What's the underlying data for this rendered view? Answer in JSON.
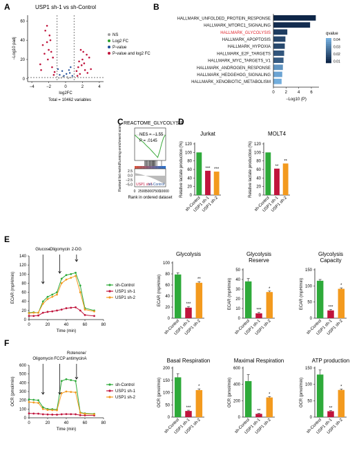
{
  "letters": {
    "A": "A",
    "B": "B",
    "C": "C",
    "D": "D",
    "E": "E",
    "F": "F"
  },
  "colors": {
    "control": "#2eaa3a",
    "sh1": "#c0143c",
    "sh2": "#f39a1e",
    "volcano_ns": "#9e9e9e",
    "volcano_log2fc": "#2ca02c",
    "volcano_p": "#1f4e9a",
    "volcano_both": "#c0143c",
    "enrich_line": "#3bab3b",
    "bar_axis": "#222222",
    "glycolysis_highlight": "#e0242a"
  },
  "chart_data": [
    {
      "id": "A",
      "type": "scatter",
      "title": "USP1 sh-1 vs sh-Control",
      "xlabel": "log2FC",
      "ylabel": "−Log10 padj",
      "xticks": [
        "−4",
        "−2",
        "0",
        "2",
        "4"
      ],
      "yticks": [
        "0",
        "20",
        "40",
        "60"
      ],
      "xlim": [
        -4.5,
        4.5
      ],
      "ylim": [
        -3,
        66
      ],
      "cutoffs": {
        "x": [
          -1,
          1
        ],
        "y": 1.3
      },
      "legend": [
        "NS",
        "Log2 FC",
        "P-value",
        "P-value and log2 FC"
      ],
      "caption": "Total = 10462 variables",
      "points_up": [
        [
          1.3,
          8
        ],
        [
          1.5,
          12
        ],
        [
          1.7,
          5
        ],
        [
          2,
          20
        ],
        [
          2.2,
          16
        ],
        [
          2.5,
          25
        ],
        [
          1.8,
          30
        ],
        [
          2.1,
          28
        ],
        [
          3,
          10
        ],
        [
          2.6,
          6
        ],
        [
          1.4,
          3
        ],
        [
          1.6,
          18
        ],
        [
          2.3,
          9
        ],
        [
          1.9,
          14
        ],
        [
          2.8,
          22
        ]
      ],
      "points_down": [
        [
          -1.3,
          7
        ],
        [
          -1.6,
          12
        ],
        [
          -2,
          30
        ],
        [
          -2.2,
          55
        ],
        [
          -1.8,
          40
        ],
        [
          -2.5,
          26
        ],
        [
          -3,
          15
        ],
        [
          -2.1,
          20
        ],
        [
          -1.4,
          4
        ],
        [
          -2.7,
          35
        ],
        [
          -1.9,
          45
        ],
        [
          -2.4,
          50
        ],
        [
          -1.5,
          22
        ],
        [
          -2.9,
          9
        ],
        [
          -2.2,
          38
        ],
        [
          -1.7,
          28
        ]
      ],
      "points_ns": [
        [
          -0.5,
          1
        ],
        [
          0.3,
          0.5
        ],
        [
          0.6,
          1.2
        ],
        [
          -0.8,
          0.9
        ],
        [
          0.2,
          1.8
        ],
        [
          -0.3,
          2.2
        ]
      ],
      "points_p": [
        [
          -0.7,
          4
        ],
        [
          0.5,
          6
        ],
        [
          -0.4,
          8
        ],
        [
          0.8,
          3
        ],
        [
          0.1,
          5
        ],
        [
          -0.9,
          10
        ],
        [
          0.6,
          12
        ],
        [
          -0.2,
          3
        ],
        [
          0.4,
          9
        ]
      ]
    },
    {
      "id": "B",
      "type": "bar",
      "categories": [
        "HALLMARK_UNFOLDED_PROTEIN_RESPONSE",
        "HALLMARK_MTORC1_SIGNALING",
        "HALLMARK_GLYCOLYSIS",
        "HALLMARK_APOPTOSIS",
        "HALLMARK_HYPOXIA",
        "HALLMARK_E2F_TARGETS",
        "HALLMARK_MYC_TARGETS_V1",
        "HALLMARK_ANDROGEN_RESPONSE",
        "HALLMARK_HEDGEHOG_SIGNALING",
        "HALLMARK_XENOBIOTIC_METABOLISM"
      ],
      "values": [
        6.7,
        5.8,
        2.2,
        1.9,
        1.8,
        1.7,
        1.6,
        1.5,
        1.4,
        1.3
      ],
      "qvalues": [
        0.005,
        0.007,
        0.012,
        0.015,
        0.016,
        0.02,
        0.022,
        0.04,
        0.045,
        0.048
      ],
      "xlabel": "−Log10 (P)",
      "xticks": [
        "0",
        "2",
        "4",
        "6"
      ],
      "xlim": [
        0,
        7.2
      ],
      "legend_title": "qvalue",
      "legend_ticks": [
        "0.04",
        "0.03",
        "0.02",
        "0.01"
      ]
    },
    {
      "id": "C",
      "type": "line",
      "title": "REACTOME_GLYCOLYSIS",
      "nes": "NES = −1.55",
      "pval": "P = .0145",
      "ylabel_top": "Running enrichment score",
      "ylabel_bottom": "Ranked list metric",
      "xlabel": "Rank in ordered dataset",
      "xticks": [
        "0",
        "2500",
        "5000",
        "7500",
        "10000"
      ],
      "bottom_yticks": [
        "2.5",
        "0.0",
        "−2.5",
        "−5.0"
      ],
      "group_left": "USP1 sh-1",
      "group_right": "sh-Control",
      "es": [
        [
          0,
          0
        ],
        [
          1000,
          -0.05
        ],
        [
          2000,
          -0.1
        ],
        [
          3000,
          -0.14
        ],
        [
          4000,
          -0.2
        ],
        [
          5000,
          -0.25
        ],
        [
          6000,
          -0.31
        ],
        [
          7000,
          -0.37
        ],
        [
          7800,
          -0.42
        ],
        [
          8500,
          -0.3
        ],
        [
          9200,
          -0.15
        ],
        [
          9800,
          -0.05
        ],
        [
          10400,
          0
        ]
      ],
      "hits": [
        3400,
        3700,
        3900,
        4100,
        4400,
        4600,
        4900,
        5100,
        5300,
        5500,
        5700,
        5900,
        6100,
        6300,
        6500,
        6700,
        6900,
        7200,
        7500,
        9100
      ]
    },
    {
      "id": "D1",
      "type": "bar",
      "title": "Jurkat",
      "ylabel": "Relative lactate production (%)",
      "categories": [
        "sh-Control",
        "USP1 sh-1",
        "USP1 sh-2"
      ],
      "values": [
        100,
        57,
        55
      ],
      "ylim": [
        0,
        120
      ],
      "yticks": [
        "0",
        "20",
        "40",
        "60",
        "80",
        "100",
        "120"
      ],
      "sig": [
        "",
        "***",
        "***"
      ]
    },
    {
      "id": "D2",
      "type": "bar",
      "title": "MOLT4",
      "ylabel": "Relative lactate production (%)",
      "categories": [
        "sh-Control",
        "USP1 sh-1",
        "USP1 sh-2"
      ],
      "values": [
        100,
        62,
        74
      ],
      "ylim": [
        0,
        120
      ],
      "yticks": [
        "0",
        "20",
        "40",
        "60",
        "80",
        "100",
        "120"
      ],
      "sig": [
        "",
        "**",
        "**"
      ]
    },
    {
      "id": "E",
      "type": "line",
      "ylabel": "ECAR (mpH/min)",
      "xlabel": "Time (min)",
      "xticks": [
        "0",
        "20",
        "40",
        "60",
        "80"
      ],
      "yticks": [
        "0",
        "20",
        "40",
        "60",
        "80",
        "100",
        "120",
        "140"
      ],
      "xlim": [
        0,
        80
      ],
      "ylim": [
        0,
        140
      ],
      "injections": [
        "Glucose",
        "Oligomycin",
        "2-DG"
      ],
      "x": [
        0,
        5,
        10,
        15,
        20,
        25,
        30,
        35,
        40,
        45,
        50,
        55,
        60,
        70
      ],
      "series": [
        {
          "name": "sh-Control",
          "values": [
            15,
            16,
            15,
            40,
            50,
            55,
            60,
            90,
            98,
            100,
            103,
            75,
            25,
            20
          ]
        },
        {
          "name": "USP1 sh-1",
          "values": [
            8,
            8,
            9,
            15,
            17,
            18,
            20,
            22,
            25,
            26,
            27,
            20,
            10,
            8
          ]
        },
        {
          "name": "USP1 sh-2",
          "values": [
            14,
            15,
            15,
            35,
            45,
            50,
            55,
            80,
            88,
            92,
            96,
            60,
            22,
            18
          ]
        }
      ]
    },
    {
      "id": "E1",
      "type": "bar",
      "title": "Glycolysis",
      "ylabel": "ECAR (mpH/min)",
      "categories": [
        "sh-Control",
        "USP1 sh-1",
        "USP1 sh-2"
      ],
      "values": [
        79,
        19,
        64
      ],
      "errors": [
        3,
        2,
        2
      ],
      "ylim": [
        0,
        100
      ],
      "yticks": [
        "0",
        "20",
        "40",
        "60",
        "80",
        "100"
      ],
      "sig": [
        "",
        "***",
        "**"
      ]
    },
    {
      "id": "E2",
      "type": "bar",
      "title": "Glycolysis Reserve",
      "ylabel": "ECAR (mpH/min)",
      "categories": [
        "sh-Control",
        "USP1 sh-1",
        "USP1 sh-2"
      ],
      "values": [
        38,
        5,
        27
      ],
      "errors": [
        3,
        1,
        1
      ],
      "ylim": [
        0,
        50
      ],
      "yticks": [
        "0",
        "10",
        "20",
        "30",
        "40",
        "50"
      ],
      "sig": [
        "",
        "***",
        "*"
      ]
    },
    {
      "id": "E3",
      "type": "bar",
      "title": "Glycolysis Capacity",
      "ylabel": "ECAR (mpH/min)",
      "categories": [
        "sh-Control",
        "USP1 sh-1",
        "USP1 sh-2"
      ],
      "values": [
        116,
        24,
        91
      ],
      "errors": [
        4,
        3,
        3
      ],
      "ylim": [
        0,
        150
      ],
      "yticks": [
        "0",
        "50",
        "100",
        "150"
      ],
      "sig": [
        "",
        "***",
        "*"
      ]
    },
    {
      "id": "F",
      "type": "line",
      "ylabel": "OCR (pmol/min)",
      "xlabel": "Time (min)",
      "xticks": [
        "0",
        "20",
        "40",
        "60",
        "80"
      ],
      "yticks": [
        "0",
        "100",
        "200",
        "300",
        "400",
        "500",
        "600"
      ],
      "xlim": [
        0,
        80
      ],
      "ylim": [
        0,
        600
      ],
      "injections": [
        "Oligomycin",
        "FCCP",
        "Rotenone/ antimycinA"
      ],
      "x": [
        0,
        5,
        10,
        15,
        20,
        25,
        30,
        35,
        40,
        45,
        50,
        55,
        60,
        70
      ],
      "series": [
        {
          "name": "sh-Control",
          "values": [
            210,
            205,
            200,
            120,
            100,
            98,
            95,
            420,
            440,
            430,
            420,
            60,
            50,
            45
          ]
        },
        {
          "name": "USP1 sh-1",
          "values": [
            50,
            48,
            47,
            40,
            38,
            37,
            36,
            40,
            42,
            41,
            40,
            30,
            28,
            27
          ]
        },
        {
          "name": "USP1 sh-2",
          "values": [
            180,
            175,
            170,
            100,
            90,
            88,
            86,
            280,
            300,
            295,
            290,
            55,
            45,
            40
          ]
        }
      ]
    },
    {
      "id": "F1",
      "type": "bar",
      "title": "Basal Respiration",
      "ylabel": "OCR (pmol/min)",
      "categories": [
        "sh-Control",
        "USP1 sh-1",
        "USP1 sh-2"
      ],
      "values": [
        162,
        25,
        110
      ],
      "errors": [
        15,
        3,
        5
      ],
      "ylim": [
        0,
        200
      ],
      "yticks": [
        "0",
        "50",
        "100",
        "150",
        "200"
      ],
      "sig": [
        "",
        "***",
        "*"
      ]
    },
    {
      "id": "F2",
      "type": "bar",
      "title": "Maximal Respiration",
      "ylabel": "OCR (pmol/min)",
      "categories": [
        "sh-Control",
        "USP1 sh-1",
        "USP1 sh-2"
      ],
      "values": [
        440,
        40,
        240
      ],
      "errors": [
        80,
        5,
        10
      ],
      "ylim": [
        0,
        600
      ],
      "yticks": [
        "0",
        "200",
        "400",
        "600"
      ],
      "sig": [
        "",
        "**",
        "*"
      ]
    },
    {
      "id": "F3",
      "type": "bar",
      "title": "ATP production",
      "ylabel": "OCR (pmol/min)",
      "categories": [
        "sh-Control",
        "USP1 sh-1",
        "USP1 sh-2"
      ],
      "values": [
        130,
        18,
        83
      ],
      "errors": [
        14,
        2,
        3
      ],
      "ylim": [
        0,
        150
      ],
      "yticks": [
        "0",
        "50",
        "100",
        "150"
      ],
      "sig": [
        "",
        "**",
        "*"
      ]
    }
  ]
}
